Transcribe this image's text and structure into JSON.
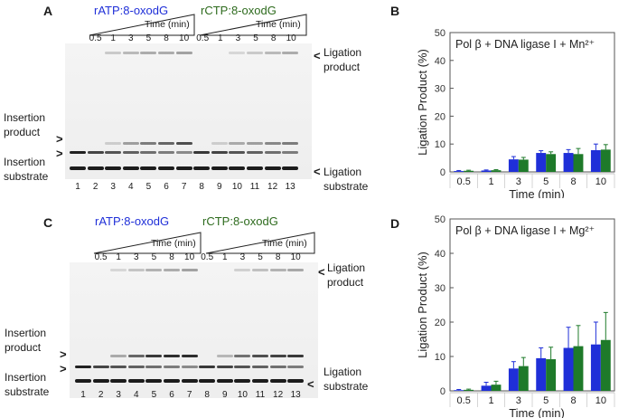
{
  "panelA": {
    "letter": "A",
    "cond_blue": "rATP:8-oxodG",
    "cond_green": "rCTP:8-oxodG",
    "time_label": "Time (min)",
    "times": [
      "0.5",
      "1",
      "3",
      "5",
      "8",
      "10"
    ],
    "lanes": [
      "1",
      "2",
      "3",
      "4",
      "5",
      "6",
      "7",
      "8",
      "9",
      "10",
      "11",
      "12",
      "13"
    ],
    "labels": {
      "ligation_product": [
        "Ligation",
        "product"
      ],
      "insertion_product": [
        "Insertion",
        "product"
      ],
      "insertion_substrate": [
        "Insertion",
        "substrate"
      ],
      "ligation_substrate": [
        "Ligation",
        "substrate"
      ]
    }
  },
  "panelC": {
    "letter": "C",
    "cond_blue": "rATP:8-oxodG",
    "cond_green": "rCTP:8-oxodG",
    "time_label": "Time (min)",
    "times": [
      "0.5",
      "1",
      "3",
      "5",
      "8",
      "10"
    ],
    "lanes": [
      "1",
      "2",
      "3",
      "4",
      "5",
      "6",
      "7",
      "8",
      "9",
      "10",
      "11",
      "12",
      "13"
    ],
    "labels": {
      "ligation_product": [
        "Ligation",
        "product"
      ],
      "insertion_product": [
        "Insertion",
        "product"
      ],
      "insertion_substrate": [
        "Insertion",
        "substrate"
      ],
      "ligation_substrate": [
        "Ligation",
        "substrate"
      ]
    }
  },
  "chart_data": [
    {
      "panel": "B",
      "type": "bar",
      "title": "Pol β + DNA ligase I + Mn²⁺",
      "xlabel": "Time (min)",
      "ylabel": "Ligation Product (%)",
      "categories": [
        "0.5",
        "1",
        "3",
        "5",
        "8",
        "10"
      ],
      "ylim": [
        0,
        50
      ],
      "yticks": [
        0,
        10,
        20,
        30,
        40,
        50
      ],
      "series": [
        {
          "name": "rATP:8-oxodG",
          "color": "#1f2fd8",
          "values": [
            0.3,
            0.5,
            4.5,
            6.8,
            6.8,
            7.8
          ],
          "errors": [
            0.2,
            0.2,
            1.0,
            0.8,
            1.2,
            2.2
          ]
        },
        {
          "name": "rCTP:8-oxodG",
          "color": "#1e7a2a",
          "values": [
            0.4,
            0.6,
            4.4,
            6.4,
            6.4,
            8.0
          ],
          "errors": [
            0.2,
            0.2,
            0.8,
            0.8,
            2.0,
            1.8
          ]
        }
      ]
    },
    {
      "panel": "D",
      "type": "bar",
      "title": "Pol β + DNA ligase I + Mg²⁺",
      "xlabel": "Time (min)",
      "ylabel": "Ligation Product (%)",
      "categories": [
        "0.5",
        "1",
        "3",
        "5",
        "8",
        "10"
      ],
      "ylim": [
        0,
        50
      ],
      "yticks": [
        0,
        10,
        20,
        30,
        40,
        50
      ],
      "series": [
        {
          "name": "rATP:8-oxodG",
          "color": "#1f2fd8",
          "values": [
            0.2,
            1.5,
            6.5,
            9.5,
            12.5,
            13.5
          ],
          "errors": [
            0.2,
            1.0,
            2.0,
            3.0,
            6.0,
            6.5
          ]
        },
        {
          "name": "rCTP:8-oxodG",
          "color": "#1e7a2a",
          "values": [
            0.3,
            1.8,
            7.2,
            9.2,
            13.0,
            14.8
          ],
          "errors": [
            0.2,
            1.0,
            2.5,
            3.5,
            6.0,
            8.0
          ]
        }
      ]
    }
  ]
}
